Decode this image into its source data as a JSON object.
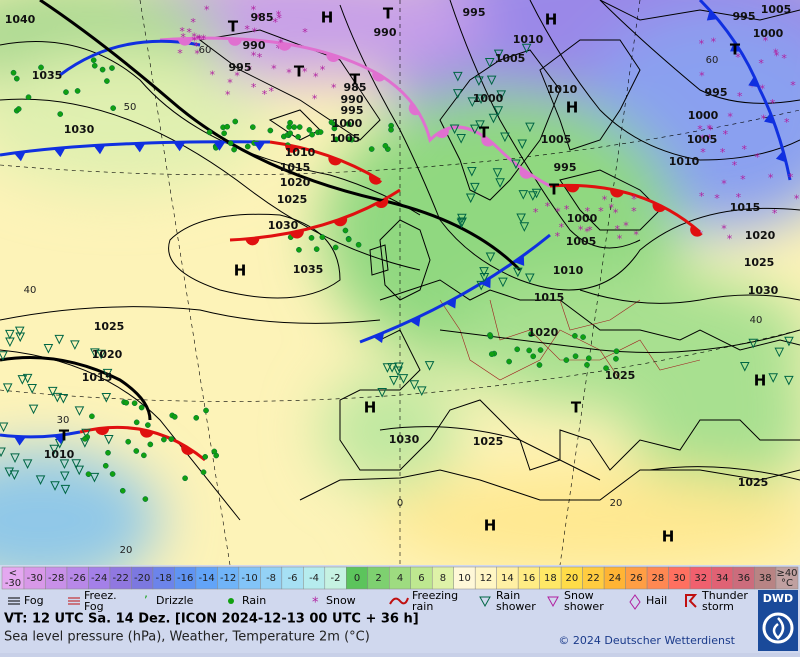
{
  "contour_labels": [
    "1040",
    "985",
    "990",
    "995",
    "995",
    "990",
    "985",
    "990",
    "995",
    "1000",
    "1005",
    "1010",
    "1015",
    "1020",
    "1025",
    "1030",
    "1035",
    "1035",
    "1030",
    "1010",
    "1005",
    "1000",
    "1010",
    "995",
    "1005",
    "1000",
    "1005",
    "1010",
    "1015",
    "1020",
    "1025",
    "1030",
    "1025",
    "995",
    "1005",
    "1000",
    "995",
    "1000",
    "1005",
    "1010",
    "1015",
    "1020",
    "1025",
    "1030",
    "1025",
    "1025",
    "1020",
    "1015",
    "1010",
    "60",
    "50",
    "40",
    "30",
    "20",
    "0",
    "20",
    "40",
    "60"
  ],
  "pressure_centers": [
    "H",
    "T",
    "H",
    "T",
    "T",
    "T",
    "H",
    "T",
    "T",
    "T",
    "H",
    "H",
    "T",
    "H",
    "T",
    "H",
    "H"
  ],
  "temperature_scale": {
    "low_label": [
      "<",
      "-30"
    ],
    "values": [
      -30,
      -28,
      -26,
      -24,
      -22,
      -20,
      -18,
      -16,
      -14,
      -12,
      -10,
      -8,
      -6,
      -4,
      -2,
      0,
      2,
      4,
      6,
      8,
      10,
      12,
      14,
      16,
      18,
      20,
      22,
      24,
      26,
      28,
      30,
      32,
      34,
      36,
      38
    ],
    "colors": [
      "#d898e8",
      "#c890e8",
      "#b888e8",
      "#a480e8",
      "#9078e0",
      "#7c78e0",
      "#6c84ea",
      "#6094f2",
      "#62a4f8",
      "#70b4f8",
      "#82c4f8",
      "#94d2f6",
      "#a6e0f4",
      "#b6ecee",
      "#c6f2e2",
      "#5cc45c",
      "#7ed070",
      "#9edc80",
      "#bee890",
      "#def2a8",
      "#fff8d8",
      "#fff6c4",
      "#fff0a4",
      "#ffec84",
      "#ffe866",
      "#ffdc48",
      "#ffcc40",
      "#ffb434",
      "#ff9e44",
      "#ff8852",
      "#ff7060",
      "#f0606e",
      "#e06274",
      "#cc6c7c",
      "#b88484"
    ],
    "high_label": [
      "≥40",
      "°C"
    ]
  },
  "weather_legend": [
    "Fog",
    "Freez.\nFog",
    "Drizzle",
    "Rain",
    "Snow",
    "Freezing\nrain",
    "Rain\nshower",
    "Snow\nshower",
    "Hail",
    "Thunder\nstorm"
  ],
  "footer": {
    "valid_time": "VT: 12 UTC Sa.  14 Dez. [ICON 2024-12-13  00 UTC + 36 h]",
    "description": "Sea level pressure (hPa), Weather, Temperature 2m (°C)",
    "copyright": "© 2024 Deutscher Wetterdienst",
    "logo": "DWD"
  }
}
